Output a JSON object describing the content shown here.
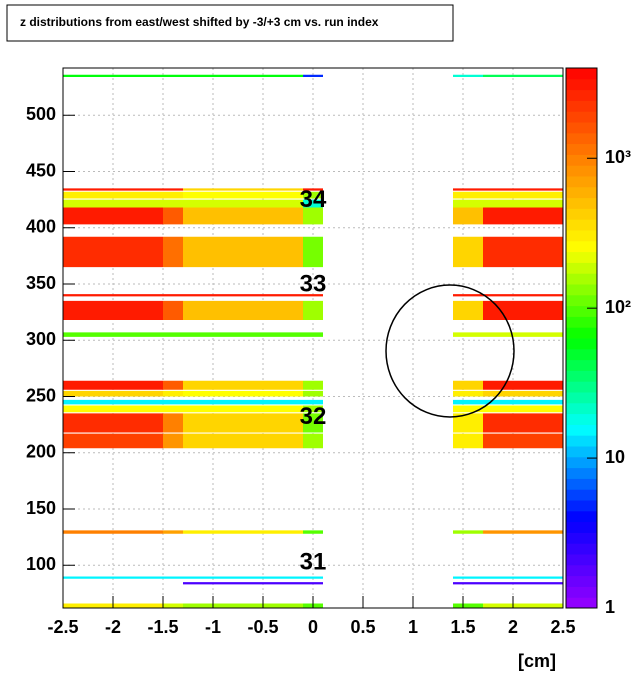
{
  "chart_data": {
    "type": "heatmap",
    "title": "z distributions from east/west shifted by -3/+3 cm vs. run index",
    "x_label": "[cm]",
    "xlim": [
      -2.5,
      2.5
    ],
    "ylim": [
      62,
      542
    ],
    "xticks": [
      -2.5,
      -2,
      -1.5,
      -1,
      -0.5,
      0,
      0.5,
      1,
      1.5,
      2,
      2.5
    ],
    "yticks": [
      100,
      150,
      200,
      250,
      300,
      350,
      400,
      450,
      500
    ],
    "grid": true,
    "z_log": true,
    "zlim": [
      1,
      4000
    ],
    "zticks": [
      1,
      10,
      {
        "value": 100,
        "label": "10²"
      },
      {
        "value": 1000,
        "label": "10³"
      }
    ],
    "palette": [
      "#9900ff",
      "#0000ff",
      "#00ffff",
      "#00ff00",
      "#ffff00",
      "#ff8000",
      "#ff0000"
    ],
    "xbins": [
      -2.5,
      -1.5,
      -1.3,
      -0.1,
      0.1,
      1.4,
      1.7,
      2.5
    ],
    "rows": [
      {
        "y": [
          534,
          536
        ],
        "values": [
          60,
          60,
          60,
          5,
          null,
          20,
          40
        ]
      },
      {
        "y": [
          433,
          435
        ],
        "values": [
          3000,
          3000,
          400,
          3000,
          null,
          3000,
          3000
        ]
      },
      {
        "y": [
          426,
          432
        ],
        "values": [
          300,
          300,
          250,
          150,
          null,
          300,
          300
        ]
      },
      {
        "y": [
          418,
          425
        ],
        "values": [
          200,
          200,
          200,
          20,
          null,
          200,
          200
        ]
      },
      {
        "y": [
          403,
          418
        ],
        "values": [
          3000,
          1500,
          500,
          150,
          null,
          500,
          3000
        ]
      },
      {
        "y": [
          365,
          392
        ],
        "values": [
          2500,
          1200,
          500,
          120,
          null,
          400,
          2500
        ]
      },
      {
        "y": [
          339,
          341
        ],
        "values": [
          3000,
          3000,
          3000,
          3000,
          null,
          3000,
          3000
        ]
      },
      {
        "y": [
          318,
          335
        ],
        "values": [
          3000,
          1500,
          500,
          150,
          null,
          400,
          3000
        ]
      },
      {
        "y": [
          303,
          307
        ],
        "values": [
          100,
          100,
          100,
          100,
          null,
          200,
          200
        ]
      },
      {
        "y": [
          256,
          264
        ],
        "values": [
          3000,
          1500,
          400,
          150,
          null,
          400,
          3000
        ]
      },
      {
        "y": [
          250,
          255
        ],
        "values": [
          400,
          300,
          250,
          150,
          null,
          300,
          400
        ]
      },
      {
        "y": [
          243,
          247
        ],
        "values": [
          15,
          15,
          15,
          15,
          null,
          15,
          15
        ]
      },
      {
        "y": [
          236,
          242
        ],
        "values": [
          250,
          250,
          250,
          150,
          null,
          250,
          250
        ]
      },
      {
        "y": [
          218,
          235
        ],
        "values": [
          2500,
          1000,
          400,
          120,
          null,
          300,
          2500
        ]
      },
      {
        "y": [
          204,
          217
        ],
        "values": [
          2000,
          800,
          400,
          150,
          null,
          300,
          2000
        ]
      },
      {
        "y": [
          128,
          131
        ],
        "values": [
          1000,
          700,
          300,
          100,
          null,
          150,
          800
        ]
      },
      {
        "y": [
          88,
          90
        ],
        "values": [
          15,
          15,
          15,
          15,
          null,
          15,
          15
        ]
      },
      {
        "y": [
          83,
          85
        ],
        "values": [
          null,
          null,
          2,
          2,
          null,
          2,
          2
        ]
      },
      {
        "y": [
          62,
          66
        ],
        "values": [
          300,
          200,
          150,
          100,
          null,
          100,
          200
        ]
      }
    ],
    "annotations": [
      {
        "text": "34",
        "x": 0,
        "y": 424
      },
      {
        "text": "33",
        "x": 0,
        "y": 349
      },
      {
        "text": "32",
        "x": 0,
        "y": 231
      },
      {
        "text": "31",
        "x": 0,
        "y": 102
      }
    ]
  }
}
